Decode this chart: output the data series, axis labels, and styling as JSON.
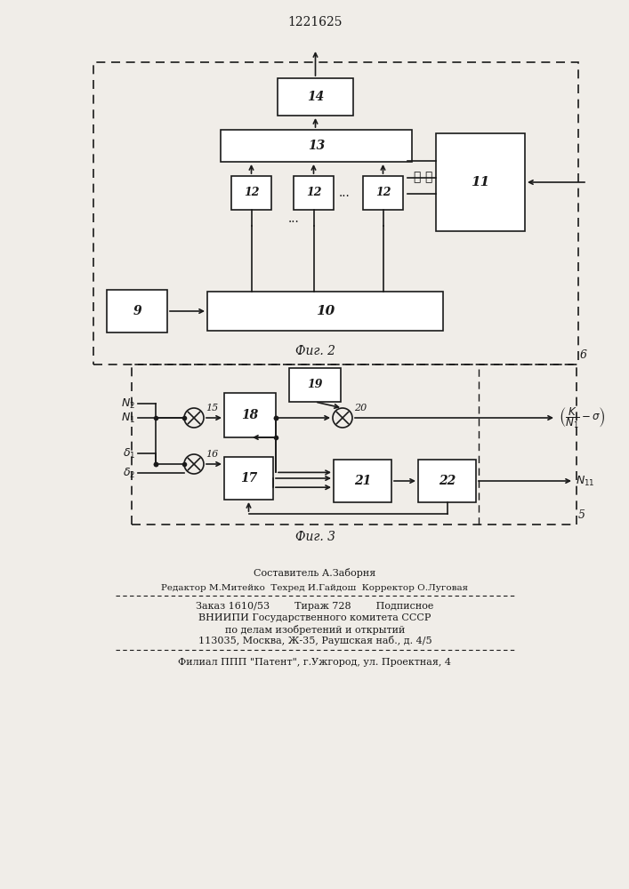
{
  "title": "1221625",
  "fig2_label": "Фиг. 2",
  "fig3_label": "Фиг. 3",
  "footer_line1": "Составитель А.Заборня",
  "footer_line2": "Редактор М.Митейко  Техред И.Гайдош  Корректор О.Луговая",
  "footer_line3": "Заказ 1610/53        Тираж 728        Подписное",
  "footer_line4": "ВНИИПИ Государственного комитета СССР",
  "footer_line5": "по делам изобретений и открытий",
  "footer_line6": "113035, Москва, Ж-35, Раушская наб., д. 4/5",
  "footer_line7": "Филиал ППП \"Патент\", г.Ужгород, ул. Проектная, 4",
  "bg_color": "#f0ede8",
  "line_color": "#1a1a1a",
  "box_color": "#ffffff"
}
